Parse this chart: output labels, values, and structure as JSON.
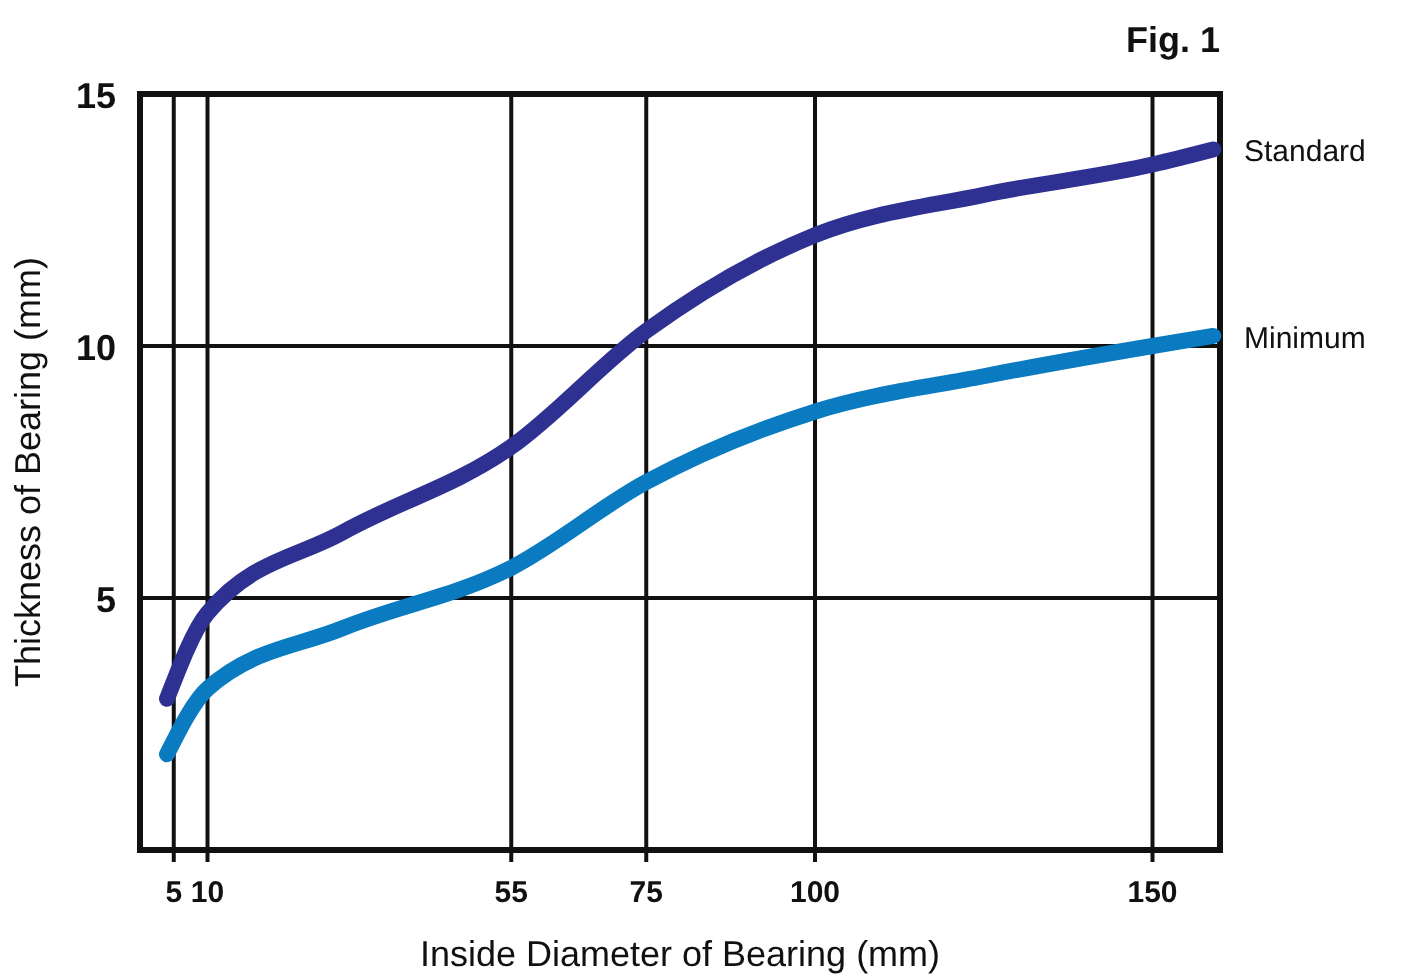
{
  "chart_data": {
    "type": "line",
    "title": "Fig. 1",
    "xlabel": "Inside Diameter of Bearing (mm)",
    "ylabel": "Thickness of Bearing (mm)",
    "xlim": [
      0,
      160
    ],
    "xticks": [
      5,
      10,
      55,
      75,
      100,
      150
    ],
    "ylim": [
      0,
      15
    ],
    "yticks": [
      5,
      10,
      15
    ],
    "grid": true,
    "marker": "none",
    "line_style": "solid",
    "series": [
      {
        "name": "Standard",
        "color": "#2e3192",
        "x": [
          4,
          10,
          30,
          55,
          75,
          100,
          125,
          150,
          159
        ],
        "values": [
          3,
          4.7,
          6.3,
          8,
          10.3,
          12.2,
          13,
          13.6,
          13.9
        ]
      },
      {
        "name": "Minimum",
        "color": "#0a7bc1",
        "x": [
          4,
          10,
          30,
          55,
          75,
          100,
          125,
          150,
          159
        ],
        "values": [
          1.9,
          3.2,
          4.4,
          5.6,
          7.3,
          8.7,
          9.4,
          10,
          10.2
        ]
      }
    ]
  }
}
